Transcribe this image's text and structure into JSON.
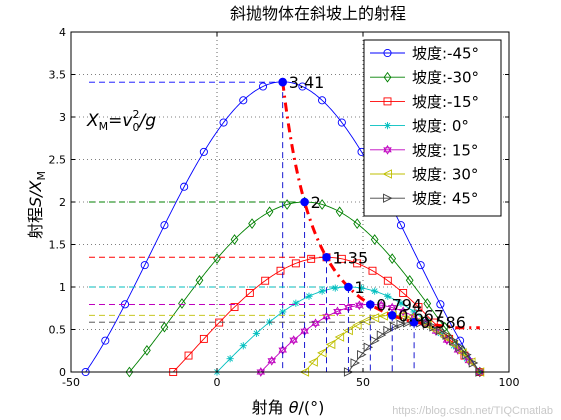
{
  "chart_data": {
    "type": "line",
    "title": "斜抛物体在斜坡上的射程",
    "xlabel_prefix": "射角 ",
    "xlabel_var": "θ",
    "xlabel_suffix": "/(°)",
    "ylabel_prefix": "射程",
    "ylabel_var": "S/X",
    "ylabel_sub": "M",
    "annotation": {
      "base": "X",
      "sub": "M",
      "eq": "=",
      "v": "v",
      "sup": "2",
      "vsub": "0",
      "tail": "/g"
    },
    "xlim": [
      -50,
      100
    ],
    "ylim": [
      0,
      4
    ],
    "xticks": [
      -50,
      0,
      50,
      100
    ],
    "yticks": [
      0,
      0.5,
      1,
      1.5,
      2,
      2.5,
      3,
      3.5,
      4
    ],
    "ytick_labels": [
      "0",
      "0.5",
      "1",
      "1.5",
      "2",
      "2.5",
      "3",
      "3.5",
      "4"
    ],
    "xtick_labels": [
      "-50",
      "0",
      "50",
      "100"
    ],
    "legend_position": "top-right",
    "series": [
      {
        "name": "坡度:-45°",
        "slope": -45,
        "color": "#0000ff",
        "marker": "circle"
      },
      {
        "name": "坡度:-30°",
        "slope": -30,
        "color": "#008000",
        "marker": "diamond"
      },
      {
        "name": "坡度:-15°",
        "slope": -15,
        "color": "#ff0000",
        "marker": "square"
      },
      {
        "name": "坡度:  0°",
        "slope": 0,
        "color": "#00bfbf",
        "marker": "star"
      },
      {
        "name": "坡度: 15°",
        "slope": 15,
        "color": "#bf00bf",
        "marker": "hexagram"
      },
      {
        "name": "坡度: 30°",
        "slope": 30,
        "color": "#bfbf00",
        "marker": "triangle-left"
      },
      {
        "name": "坡度: 45°",
        "slope": 45,
        "color": "#404040",
        "marker": "triangle-right"
      }
    ],
    "maxima": [
      {
        "x": 22.5,
        "y": 3.41,
        "label": "3.41"
      },
      {
        "x": 30,
        "y": 2,
        "label": "2"
      },
      {
        "x": 37.5,
        "y": 1.35,
        "label": "1.35"
      },
      {
        "x": 45,
        "y": 1,
        "label": "1"
      },
      {
        "x": 52.5,
        "y": 0.794,
        "label": "0.794"
      },
      {
        "x": 60,
        "y": 0.667,
        "label": "0.667"
      },
      {
        "x": 67.5,
        "y": 0.586,
        "label": "0.586"
      }
    ],
    "envelope_color": "#ff0000"
  },
  "watermark": "https://blog.csdn.net/TIQCmatlab"
}
